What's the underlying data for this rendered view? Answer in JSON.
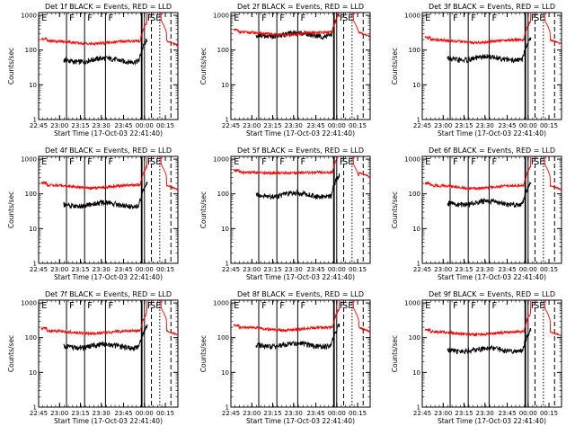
{
  "chart_data": [
    {
      "type": "line",
      "title": "Det 1f BLACK = Events, RED = LLD",
      "xlabel": "Start Time (17-Oct-03 22:41:40)",
      "ylabel": "Counts/sec",
      "xticks": [
        "22:45",
        "23:00",
        "23:15",
        "23:30",
        "23:45",
        "00:00",
        "00:15"
      ],
      "yticks": [
        "1",
        "10",
        "100",
        "1000"
      ],
      "yscale": "log",
      "ylim": [
        1,
        1200
      ],
      "xlim": [
        0,
        100
      ],
      "markers": [
        "E",
        "F",
        "F",
        "F",
        "F",
        "S",
        "E"
      ],
      "series": [
        {
          "name": "BLACK = Events",
          "color": "#000000",
          "shape": "events",
          "base": 52
        },
        {
          "name": "RED = LLD",
          "color": "#ff0000",
          "shape": "lld",
          "base": 185
        }
      ]
    },
    {
      "type": "line",
      "title": "Det 2f BLACK = Events, RED = LLD",
      "xlabel": "Start Time (17-Oct-03 22:41:40)",
      "ylabel": "Counts/sec",
      "xticks": [
        "22:45",
        "23:00",
        "23:15",
        "23:30",
        "23:45",
        "00:00",
        "00:15"
      ],
      "yticks": [
        "1",
        "10",
        "100",
        "1000"
      ],
      "yscale": "log",
      "ylim": [
        1,
        1200
      ],
      "xlim": [
        0,
        100
      ],
      "markers": [
        "E",
        "F",
        "F",
        "F",
        "F",
        "S",
        "E"
      ],
      "series": [
        {
          "name": "BLACK = Events",
          "color": "#000000",
          "shape": "events2",
          "base": 280
        },
        {
          "name": "RED = LLD",
          "color": "#ff0000",
          "shape": "lld2",
          "base": 330
        }
      ]
    },
    {
      "type": "line",
      "title": "Det 3f BLACK = Events, RED = LLD",
      "xlabel": "Start Time (17-Oct-03 22:41:40)",
      "ylabel": "Counts/sec",
      "xticks": [
        "22:45",
        "23:00",
        "23:15",
        "23:30",
        "23:45",
        "00:00",
        "00:15"
      ],
      "yticks": [
        "1",
        "10",
        "100",
        "1000"
      ],
      "yscale": "log",
      "ylim": [
        1,
        1200
      ],
      "xlim": [
        0,
        100
      ],
      "markers": [
        "E",
        "F",
        "F",
        "F",
        "F",
        "S",
        "E"
      ],
      "series": [
        {
          "name": "BLACK = Events",
          "color": "#000000",
          "shape": "events",
          "base": 58
        },
        {
          "name": "RED = LLD",
          "color": "#ff0000",
          "shape": "lld",
          "base": 200
        }
      ]
    },
    {
      "type": "line",
      "title": "Det 4f BLACK = Events, RED = LLD",
      "xlabel": "Start Time (17-Oct-03 22:41:40)",
      "ylabel": "Counts/sec",
      "xticks": [
        "22:45",
        "23:00",
        "23:15",
        "23:30",
        "23:45",
        "00:00",
        "00:15"
      ],
      "yticks": [
        "1",
        "10",
        "100",
        "1000"
      ],
      "yscale": "log",
      "ylim": [
        1,
        1200
      ],
      "xlim": [
        0,
        100
      ],
      "markers": [
        "E",
        "F",
        "F",
        "F",
        "F",
        "S",
        "E"
      ],
      "series": [
        {
          "name": "BLACK = Events",
          "color": "#000000",
          "shape": "events",
          "base": 50
        },
        {
          "name": "RED = LLD",
          "color": "#ff0000",
          "shape": "lld",
          "base": 180
        }
      ]
    },
    {
      "type": "line",
      "title": "Det 5f BLACK = Events, RED = LLD",
      "xlabel": "Start Time (17-Oct-03 22:41:40)",
      "ylabel": "Counts/sec",
      "xticks": [
        "22:45",
        "23:00",
        "23:15",
        "23:30",
        "23:45",
        "00:00",
        "00:15"
      ],
      "yticks": [
        "1",
        "10",
        "100",
        "1000"
      ],
      "yscale": "log",
      "ylim": [
        1,
        1200
      ],
      "xlim": [
        0,
        100
      ],
      "markers": [
        "E",
        "F",
        "F",
        "F",
        "F",
        "S",
        "E"
      ],
      "series": [
        {
          "name": "BLACK = Events",
          "color": "#000000",
          "shape": "events",
          "base": 95
        },
        {
          "name": "RED = LLD",
          "color": "#ff0000",
          "shape": "lld5",
          "base": 420
        }
      ]
    },
    {
      "type": "line",
      "title": "Det 6f BLACK = Events, RED = LLD",
      "xlabel": "Start Time (17-Oct-03 22:41:40)",
      "ylabel": "Counts/sec",
      "xticks": [
        "22:45",
        "23:00",
        "23:15",
        "23:30",
        "23:45",
        "00:00",
        "00:15"
      ],
      "yticks": [
        "1",
        "10",
        "100",
        "1000"
      ],
      "yscale": "log",
      "ylim": [
        1,
        1200
      ],
      "xlim": [
        0,
        100
      ],
      "markers": [
        "E",
        "F",
        "F",
        "F",
        "F",
        "S",
        "E"
      ],
      "series": [
        {
          "name": "BLACK = Events",
          "color": "#000000",
          "shape": "events",
          "base": 55
        },
        {
          "name": "RED = LLD",
          "color": "#ff0000",
          "shape": "lld",
          "base": 175
        }
      ]
    },
    {
      "type": "line",
      "title": "Det 7f BLACK = Events, RED = LLD",
      "xlabel": "Start Time (17-Oct-03 22:41:40)",
      "ylabel": "Counts/sec",
      "xticks": [
        "22:45",
        "23:00",
        "23:15",
        "23:30",
        "23:45",
        "00:00",
        "00:15"
      ],
      "yticks": [
        "1",
        "10",
        "100",
        "1000"
      ],
      "yscale": "log",
      "ylim": [
        1,
        1200
      ],
      "xlim": [
        0,
        100
      ],
      "markers": [
        "E",
        "F",
        "F",
        "F",
        "F",
        "S",
        "E"
      ],
      "series": [
        {
          "name": "BLACK = Events",
          "color": "#000000",
          "shape": "events",
          "base": 58
        },
        {
          "name": "RED = LLD",
          "color": "#ff0000",
          "shape": "lld",
          "base": 160
        }
      ]
    },
    {
      "type": "line",
      "title": "Det 8f BLACK = Events, RED = LLD",
      "xlabel": "Start Time (17-Oct-03 22:41:40)",
      "ylabel": "Counts/sec",
      "xticks": [
        "22:45",
        "23:00",
        "23:15",
        "23:30",
        "23:45",
        "00:00",
        "00:15"
      ],
      "yticks": [
        "1",
        "10",
        "100",
        "1000"
      ],
      "yscale": "log",
      "ylim": [
        1,
        1200
      ],
      "xlim": [
        0,
        100
      ],
      "markers": [
        "E",
        "F",
        "F",
        "F",
        "F",
        "S",
        "E"
      ],
      "series": [
        {
          "name": "BLACK = Events",
          "color": "#000000",
          "shape": "events",
          "base": 62
        },
        {
          "name": "RED = LLD",
          "color": "#ff0000",
          "shape": "lld",
          "base": 200
        }
      ]
    },
    {
      "type": "line",
      "title": "Det 9f BLACK = Events, RED = LLD",
      "xlabel": "Start Time (17-Oct-03 22:41:40)",
      "ylabel": "Counts/sec",
      "xticks": [
        "22:45",
        "23:00",
        "23:15",
        "23:30",
        "23:45",
        "00:00",
        "00:15"
      ],
      "yticks": [
        "1",
        "10",
        "100",
        "1000"
      ],
      "yscale": "log",
      "ylim": [
        1,
        1200
      ],
      "xlim": [
        0,
        100
      ],
      "markers": [
        "E",
        "F",
        "F",
        "F",
        "F",
        "S",
        "E"
      ],
      "series": [
        {
          "name": "BLACK = Events",
          "color": "#000000",
          "shape": "events",
          "base": 45
        },
        {
          "name": "RED = LLD",
          "color": "#ff0000",
          "shape": "lld",
          "base": 150
        }
      ]
    }
  ]
}
